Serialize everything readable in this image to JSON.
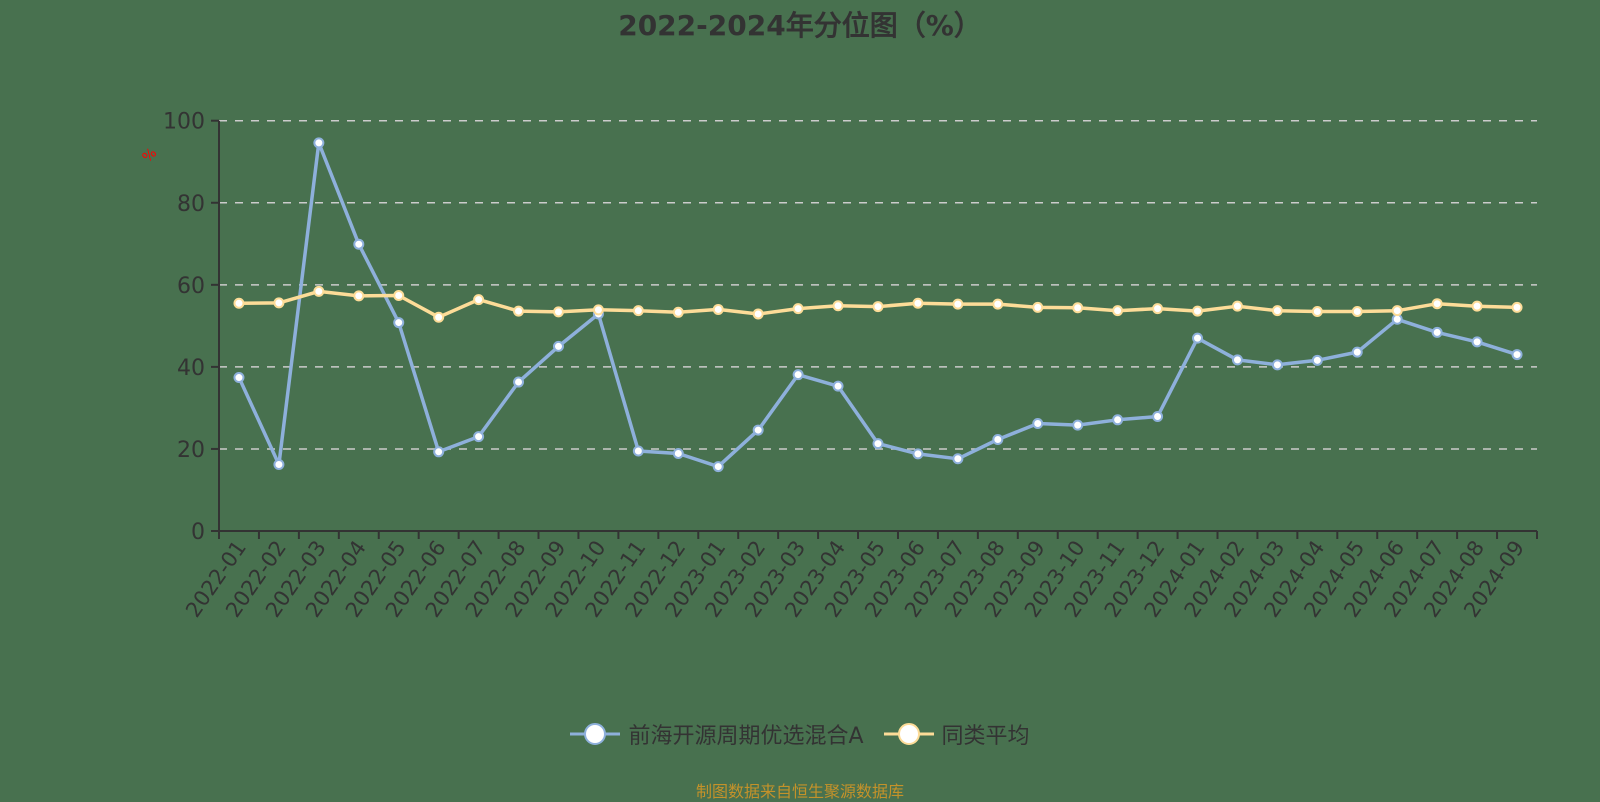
{
  "title": "2022-2024年分位图（%）",
  "y_unit_label": "%",
  "legend": [
    {
      "label": "前海开源周期优选混合A",
      "color": "#8eb0db"
    },
    {
      "label": "同类平均",
      "color": "#fddc98"
    }
  ],
  "source_note": "制图数据来自恒生聚源数据库",
  "colors": {
    "background": "#48714f",
    "axis": "#333333",
    "grid": "#cccccc",
    "unit_label": "#ff0000"
  },
  "chart_data": {
    "type": "line",
    "title": "2022-2024年分位图（%）",
    "xlabel": "",
    "ylabel": "%",
    "ylim": [
      0,
      100
    ],
    "yticks": [
      0,
      20,
      40,
      60,
      80,
      100
    ],
    "grid": true,
    "legend_position": "bottom",
    "categories": [
      "2022-01",
      "2022-02",
      "2022-03",
      "2022-04",
      "2022-05",
      "2022-06",
      "2022-07",
      "2022-08",
      "2022-09",
      "2022-10",
      "2022-11",
      "2022-12",
      "2023-01",
      "2023-02",
      "2023-03",
      "2023-04",
      "2023-05",
      "2023-06",
      "2023-07",
      "2023-08",
      "2023-09",
      "2023-10",
      "2023-11",
      "2023-12",
      "2024-01",
      "2024-02",
      "2024-03",
      "2024-04",
      "2024-05",
      "2024-06",
      "2024-07",
      "2024-08",
      "2024-09"
    ],
    "series": [
      {
        "name": "前海开源周期优选混合A",
        "color": "#8eb0db",
        "values": [
          37.4,
          16.2,
          94.6,
          69.9,
          50.8,
          19.3,
          23.0,
          36.3,
          45.0,
          52.9,
          19.5,
          18.9,
          15.7,
          24.6,
          38.1,
          35.3,
          21.3,
          18.8,
          17.6,
          22.3,
          26.2,
          25.8,
          27.1,
          27.9,
          47.0,
          41.7,
          40.5,
          41.6,
          43.6,
          51.6,
          48.4,
          46.1,
          43.0
        ]
      },
      {
        "name": "同类平均",
        "color": "#fddc98",
        "values": [
          55.5,
          55.6,
          58.4,
          57.3,
          57.4,
          52.1,
          56.4,
          53.6,
          53.4,
          53.9,
          53.7,
          53.3,
          54.0,
          52.9,
          54.2,
          54.9,
          54.7,
          55.5,
          55.3,
          55.3,
          54.5,
          54.4,
          53.7,
          54.2,
          53.6,
          54.8,
          53.7,
          53.5,
          53.5,
          53.7,
          55.4,
          54.8,
          54.5
        ]
      }
    ]
  }
}
